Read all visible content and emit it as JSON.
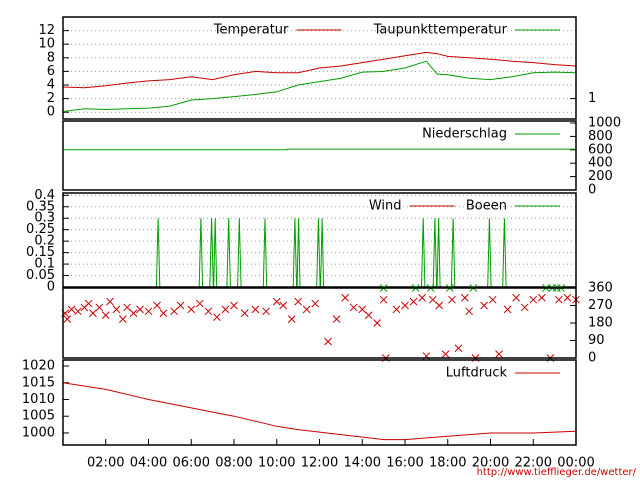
{
  "chart_data": [
    {
      "type": "line",
      "xlim": [
        0,
        24
      ],
      "ylim": [
        -1,
        14
      ],
      "yticks": [
        0,
        2,
        4,
        6,
        8,
        10,
        12
      ],
      "y2lim": [
        0,
        5
      ],
      "y2ticks": [
        1
      ],
      "grid": true,
      "legend": "top-right",
      "series": [
        {
          "name": "Temperatur",
          "color": "#cc0000",
          "x": [
            0,
            1,
            2,
            3,
            4,
            5,
            6,
            7,
            8,
            9,
            10,
            11,
            12,
            13,
            14,
            15,
            16,
            17,
            17.5,
            18,
            19,
            20,
            21,
            22,
            23,
            24
          ],
          "values": [
            3.7,
            3.6,
            3.9,
            4.3,
            4.6,
            4.8,
            5.2,
            4.8,
            5.5,
            6.0,
            5.8,
            5.8,
            6.5,
            6.8,
            7.3,
            7.8,
            8.3,
            8.8,
            8.6,
            8.2,
            8.0,
            7.8,
            7.5,
            7.3,
            7.0,
            6.8
          ]
        },
        {
          "name": "Taupunkttemperatur",
          "color": "#00a000",
          "x": [
            0,
            1,
            2,
            3,
            4,
            5,
            6,
            7,
            8,
            9,
            10,
            11,
            12,
            13,
            14,
            15,
            16,
            17,
            17.5,
            18,
            19,
            20,
            21,
            22,
            23,
            24
          ],
          "values": [
            0.1,
            0.5,
            0.4,
            0.5,
            0.6,
            0.9,
            1.8,
            2.0,
            2.3,
            2.6,
            3.0,
            4.0,
            4.5,
            5.0,
            5.9,
            6.0,
            6.5,
            7.5,
            5.6,
            5.5,
            5.0,
            4.8,
            5.2,
            5.8,
            5.9,
            5.8
          ]
        }
      ]
    },
    {
      "type": "line",
      "xlim": [
        0,
        24
      ],
      "ylim": [
        0,
        1030
      ],
      "yticks": [
        0,
        200,
        400,
        600,
        800,
        1000
      ],
      "y_axis_side": "right",
      "legend": "top-right",
      "series": [
        {
          "name": "Niederschlag",
          "color": "#00a000",
          "x": [
            0,
            10.5,
            10.5,
            24
          ],
          "values": [
            600,
            600,
            610,
            610
          ]
        }
      ]
    },
    {
      "type": "line",
      "xlim": [
        0,
        24
      ],
      "ylim": [
        0,
        0.41
      ],
      "yticks": [
        0,
        0.05,
        0.1,
        0.15,
        0.2,
        0.25,
        0.3,
        0.35,
        0.4
      ],
      "grid": true,
      "legend": "top-right",
      "series": [
        {
          "name": "Wind",
          "color": "#cc0000",
          "x": [
            0,
            24
          ],
          "values": [
            0,
            0
          ]
        },
        {
          "name": "Boeen",
          "color": "#00a000",
          "x": [
            0,
            4.37,
            4.45,
            4.53,
            6.37,
            6.45,
            6.53,
            6.87,
            6.95,
            7.03,
            7.05,
            7.12,
            7.19,
            7.67,
            7.75,
            7.83,
            8.17,
            8.25,
            8.33,
            9.37,
            9.45,
            9.53,
            10.77,
            10.85,
            10.93,
            10.95,
            11.02,
            11.09,
            11.87,
            11.95,
            12.03,
            12.05,
            12.12,
            12.19,
            16.77,
            16.85,
            16.93,
            17.32,
            17.4,
            17.48,
            17.5,
            17.57,
            17.64,
            18.17,
            18.25,
            18.33,
            19.87,
            19.95,
            20.03,
            20.57,
            20.65,
            20.73,
            24
          ],
          "values": [
            0,
            0,
            0.3,
            0,
            0,
            0.3,
            0,
            0,
            0.3,
            0,
            0,
            0.3,
            0,
            0,
            0.3,
            0,
            0,
            0.3,
            0,
            0,
            0.3,
            0,
            0,
            0.3,
            0,
            0,
            0.3,
            0,
            0,
            0.3,
            0,
            0,
            0.3,
            0,
            0,
            0.3,
            0,
            0,
            0.3,
            0,
            0,
            0.3,
            0,
            0,
            0.3,
            0,
            0,
            0.3,
            0,
            0,
            0.3,
            0,
            0
          ]
        }
      ]
    },
    {
      "type": "scatter",
      "xlim": [
        0,
        24
      ],
      "ylim": [
        0,
        360
      ],
      "yticks": [
        0,
        90,
        180,
        270,
        360
      ],
      "y_axis_side": "right",
      "series": [
        {
          "color": "#cc0000",
          "x": [
            0.1,
            0.2,
            0.4,
            0.7,
            1,
            1.2,
            1.4,
            1.7,
            2,
            2.2,
            2.5,
            2.8,
            3,
            3.3,
            3.6,
            4,
            4.4,
            4.7,
            5.2,
            5.5,
            6,
            6.4,
            6.8,
            7.2,
            7.6,
            8,
            8.5,
            9,
            9.5,
            10,
            10.3,
            10.7,
            11,
            11.4,
            11.8,
            12.4,
            12.8,
            13.2,
            13.6,
            14,
            14.3,
            14.7,
            15,
            15.1,
            15.6,
            16,
            16.4,
            16.8,
            17,
            17.3,
            17.6,
            17.9,
            18.2,
            18.5,
            18.8,
            19,
            19.3,
            19.7,
            20.1,
            20.4,
            20.8,
            21.2,
            21.6,
            22,
            22.4,
            22.8,
            23.2,
            23.6,
            24
          ],
          "values": [
            230,
            200,
            250,
            240,
            260,
            280,
            230,
            260,
            220,
            290,
            250,
            200,
            260,
            230,
            250,
            240,
            270,
            230,
            240,
            270,
            250,
            280,
            240,
            210,
            250,
            270,
            230,
            250,
            240,
            290,
            270,
            200,
            290,
            250,
            280,
            85,
            200,
            310,
            260,
            250,
            220,
            180,
            300,
            0,
            250,
            270,
            290,
            310,
            10,
            300,
            270,
            20,
            300,
            50,
            310,
            240,
            0,
            270,
            300,
            20,
            250,
            310,
            260,
            300,
            310,
            0,
            300,
            310,
            300
          ]
        },
        {
          "color": "#00a000",
          "x": [
            15,
            16.5,
            17.2,
            18.1,
            19.2,
            22.6,
            22.9,
            23.1,
            23.3
          ],
          "values": [
            360,
            360,
            360,
            360,
            360,
            360,
            360,
            360,
            360
          ]
        }
      ]
    },
    {
      "type": "line",
      "xlim": [
        0,
        24
      ],
      "ylim": [
        996.4,
        1021.8
      ],
      "yticks": [
        1000,
        1005,
        1010,
        1015,
        1020
      ],
      "legend": "top-right",
      "xticks": [
        {
          "value": 2,
          "label": "02:00"
        },
        {
          "value": 4,
          "label": "04:00"
        },
        {
          "value": 6,
          "label": "06:00"
        },
        {
          "value": 8,
          "label": "08:00"
        },
        {
          "value": 10,
          "label": "10:00"
        },
        {
          "value": 12,
          "label": "12:00"
        },
        {
          "value": 14,
          "label": "14:00"
        },
        {
          "value": 16,
          "label": "16:00"
        },
        {
          "value": 18,
          "label": "18:00"
        },
        {
          "value": 20,
          "label": "20:00"
        },
        {
          "value": 22,
          "label": "22:00"
        },
        {
          "value": 24,
          "label": "00:00"
        }
      ],
      "series": [
        {
          "name": "Luftdruck",
          "color": "#cc0000",
          "x": [
            0,
            2,
            4,
            6,
            8,
            10,
            11,
            13,
            15,
            16,
            18,
            20,
            22,
            24
          ],
          "values": [
            1015,
            1013,
            1010,
            1007.5,
            1005,
            1002,
            1001,
            999.5,
            998,
            998,
            999,
            1000,
            1000,
            1000.5
          ]
        }
      ]
    }
  ],
  "footer": "http://www.tiefflieger.de/wetter/"
}
